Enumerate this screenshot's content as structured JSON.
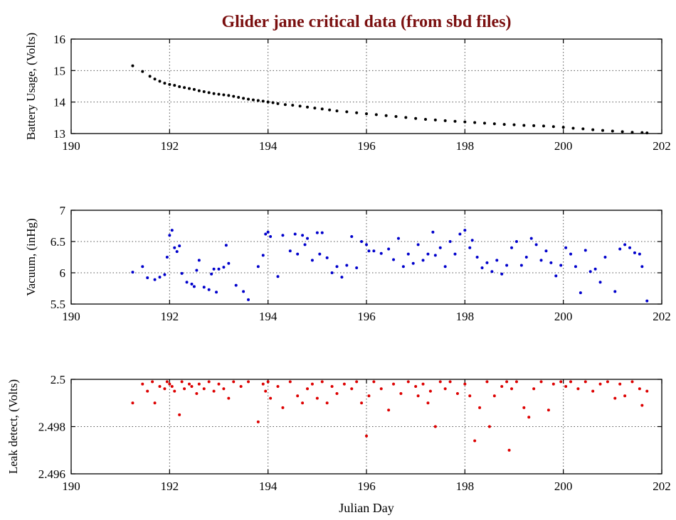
{
  "colors": {
    "title": "#7a0f0f",
    "series_battery": "#000000",
    "series_vacuum": "#0000cc",
    "series_leak": "#dd0000",
    "grid": "#555555"
  },
  "chart_data": [
    {
      "type": "scatter",
      "title": "Glider jane critical data (from sbd files)",
      "xlabel": "",
      "ylabel": "Battery Usage, (Volts)",
      "xlim": [
        190,
        202
      ],
      "ylim": [
        13,
        16
      ],
      "xticks": [
        190,
        192,
        194,
        196,
        198,
        200,
        202
      ],
      "yticks": [
        13,
        14,
        15,
        16
      ],
      "xtick_labels": [
        "190",
        "192",
        "194",
        "196",
        "198",
        "200",
        "202"
      ],
      "ytick_labels": [
        "13",
        "14",
        "15",
        "16"
      ],
      "grid": true,
      "series": [
        {
          "name": "Battery Usage",
          "color": "#000000",
          "x": [
            191.25,
            191.45,
            191.6,
            191.7,
            191.8,
            191.9,
            192.0,
            192.1,
            192.2,
            192.3,
            192.4,
            192.5,
            192.6,
            192.7,
            192.8,
            192.9,
            193.0,
            193.1,
            193.2,
            193.3,
            193.4,
            193.5,
            193.6,
            193.7,
            193.8,
            193.9,
            194.0,
            194.1,
            194.2,
            194.35,
            194.5,
            194.65,
            194.8,
            194.95,
            195.1,
            195.25,
            195.4,
            195.6,
            195.8,
            196.0,
            196.2,
            196.4,
            196.6,
            196.8,
            197.0,
            197.2,
            197.4,
            197.6,
            197.8,
            198.0,
            198.2,
            198.4,
            198.6,
            198.8,
            199.0,
            199.2,
            199.4,
            199.6,
            199.8,
            200.0,
            200.2,
            200.4,
            200.6,
            200.8,
            201.0,
            201.2,
            201.4,
            201.6,
            201.7
          ],
          "y": [
            15.15,
            14.97,
            14.82,
            14.73,
            14.66,
            14.6,
            14.56,
            14.53,
            14.49,
            14.46,
            14.43,
            14.4,
            14.36,
            14.33,
            14.3,
            14.27,
            14.25,
            14.23,
            14.21,
            14.18,
            14.15,
            14.12,
            14.09,
            14.07,
            14.05,
            14.03,
            14.0,
            13.98,
            13.95,
            13.92,
            13.9,
            13.87,
            13.84,
            13.81,
            13.78,
            13.75,
            13.72,
            13.69,
            13.66,
            13.63,
            13.6,
            13.57,
            13.54,
            13.51,
            13.48,
            13.45,
            13.43,
            13.41,
            13.39,
            13.37,
            13.35,
            13.33,
            13.31,
            13.29,
            13.28,
            13.26,
            13.25,
            13.24,
            13.22,
            13.2,
            13.17,
            13.15,
            13.12,
            13.1,
            13.08,
            13.06,
            13.04,
            13.03,
            13.02
          ]
        }
      ]
    },
    {
      "type": "scatter",
      "xlabel": "",
      "ylabel": "Vacuum, (inHg)",
      "xlim": [
        190,
        202
      ],
      "ylim": [
        5.5,
        7
      ],
      "xticks": [
        190,
        192,
        194,
        196,
        198,
        200,
        202
      ],
      "yticks": [
        5.5,
        6,
        6.5,
        7
      ],
      "xtick_labels": [
        "190",
        "192",
        "194",
        "196",
        "198",
        "200",
        "202"
      ],
      "ytick_labels": [
        "5.5",
        "6",
        "6.5",
        "7"
      ],
      "grid": true,
      "series": [
        {
          "name": "Vacuum",
          "color": "#0000cc",
          "x": [
            191.25,
            191.45,
            191.55,
            191.7,
            191.8,
            191.9,
            191.95,
            192.0,
            192.05,
            192.1,
            192.15,
            192.2,
            192.25,
            192.35,
            192.45,
            192.5,
            192.55,
            192.6,
            192.7,
            192.8,
            192.85,
            192.9,
            192.95,
            193.0,
            193.1,
            193.15,
            193.2,
            193.35,
            193.5,
            193.6,
            193.8,
            193.9,
            193.95,
            194.0,
            194.05,
            194.2,
            194.3,
            194.45,
            194.55,
            194.6,
            194.7,
            194.75,
            194.8,
            194.9,
            195.0,
            195.05,
            195.1,
            195.2,
            195.3,
            195.4,
            195.5,
            195.6,
            195.7,
            195.8,
            195.9,
            196.0,
            196.05,
            196.15,
            196.3,
            196.45,
            196.55,
            196.65,
            196.75,
            196.85,
            196.95,
            197.05,
            197.15,
            197.25,
            197.35,
            197.4,
            197.5,
            197.6,
            197.7,
            197.8,
            197.9,
            198.0,
            198.1,
            198.15,
            198.25,
            198.35,
            198.45,
            198.55,
            198.65,
            198.75,
            198.85,
            198.95,
            199.05,
            199.15,
            199.25,
            199.35,
            199.45,
            199.55,
            199.65,
            199.75,
            199.85,
            199.95,
            200.05,
            200.15,
            200.25,
            200.35,
            200.45,
            200.55,
            200.65,
            200.75,
            200.85,
            201.05,
            201.15,
            201.25,
            201.35,
            201.45,
            201.55,
            201.6,
            201.7
          ],
          "y": [
            6.01,
            6.1,
            5.92,
            5.89,
            5.93,
            5.97,
            6.25,
            6.6,
            6.68,
            6.4,
            6.34,
            6.43,
            5.99,
            5.85,
            5.82,
            5.78,
            6.04,
            6.2,
            5.77,
            5.73,
            5.98,
            6.06,
            5.69,
            6.06,
            6.09,
            6.44,
            6.15,
            5.8,
            5.7,
            5.57,
            6.1,
            6.28,
            6.62,
            6.65,
            6.58,
            5.94,
            6.6,
            6.35,
            6.62,
            6.3,
            6.6,
            6.45,
            6.55,
            6.2,
            6.64,
            6.3,
            6.64,
            6.24,
            6.0,
            6.1,
            5.93,
            6.12,
            6.58,
            6.08,
            6.5,
            6.45,
            6.35,
            6.35,
            6.31,
            6.38,
            6.21,
            6.55,
            6.1,
            6.3,
            6.15,
            6.45,
            6.2,
            6.3,
            6.65,
            6.28,
            6.4,
            6.1,
            6.5,
            6.3,
            6.62,
            6.68,
            6.4,
            6.52,
            6.25,
            6.08,
            6.16,
            6.02,
            6.2,
            5.98,
            6.12,
            6.4,
            6.5,
            6.12,
            6.25,
            6.55,
            6.45,
            6.2,
            6.35,
            6.16,
            5.95,
            6.12,
            6.4,
            6.3,
            6.1,
            5.68,
            6.36,
            6.02,
            6.06,
            5.85,
            6.25,
            5.7,
            6.38,
            6.45,
            6.4,
            6.32,
            6.3,
            6.1,
            5.55
          ]
        }
      ]
    },
    {
      "type": "scatter",
      "xlabel": "Julian Day",
      "ylabel": "Leak detect, (Volts)",
      "xlim": [
        190,
        202
      ],
      "ylim": [
        2.496,
        2.5
      ],
      "xticks": [
        190,
        192,
        194,
        196,
        198,
        200,
        202
      ],
      "yticks": [
        2.496,
        2.498,
        2.5
      ],
      "xtick_labels": [
        "190",
        "192",
        "194",
        "196",
        "198",
        "200",
        "202"
      ],
      "ytick_labels": [
        "2.496",
        "2.498",
        "2.5"
      ],
      "grid": true,
      "series": [
        {
          "name": "Leak detect",
          "color": "#dd0000",
          "x": [
            191.25,
            191.45,
            191.55,
            191.65,
            191.7,
            191.8,
            191.9,
            191.95,
            192.0,
            192.05,
            192.1,
            192.2,
            192.25,
            192.3,
            192.4,
            192.45,
            192.55,
            192.6,
            192.7,
            192.8,
            192.9,
            193.0,
            193.1,
            193.2,
            193.3,
            193.45,
            193.6,
            193.8,
            193.9,
            193.95,
            194.0,
            194.05,
            194.2,
            194.3,
            194.45,
            194.6,
            194.7,
            194.8,
            194.9,
            195.0,
            195.1,
            195.2,
            195.3,
            195.4,
            195.55,
            195.7,
            195.8,
            195.9,
            196.0,
            196.05,
            196.15,
            196.3,
            196.45,
            196.55,
            196.7,
            196.85,
            197.0,
            197.05,
            197.15,
            197.25,
            197.3,
            197.4,
            197.5,
            197.6,
            197.7,
            197.85,
            198.0,
            198.1,
            198.2,
            198.3,
            198.45,
            198.5,
            198.6,
            198.75,
            198.85,
            198.9,
            198.95,
            199.05,
            199.2,
            199.3,
            199.4,
            199.55,
            199.7,
            199.8,
            199.95,
            200.05,
            200.15,
            200.3,
            200.45,
            200.6,
            200.75,
            200.9,
            201.05,
            201.15,
            201.25,
            201.4,
            201.55,
            201.6,
            201.7
          ],
          "y": [
            2.499,
            2.4998,
            2.4995,
            2.4999,
            2.499,
            2.4997,
            2.4996,
            2.4999,
            2.4998,
            2.4997,
            2.4995,
            2.4985,
            2.4999,
            2.4996,
            2.4998,
            2.4997,
            2.4994,
            2.4998,
            2.4996,
            2.4999,
            2.4995,
            2.4998,
            2.4996,
            2.4992,
            2.4999,
            2.4997,
            2.4999,
            2.4982,
            2.4998,
            2.4995,
            2.4999,
            2.4992,
            2.4997,
            2.4988,
            2.4999,
            2.4993,
            2.499,
            2.4996,
            2.4998,
            2.4992,
            2.4999,
            2.499,
            2.4997,
            2.4994,
            2.4998,
            2.4996,
            2.4999,
            2.499,
            2.4976,
            2.4993,
            2.4999,
            2.4996,
            2.4987,
            2.4998,
            2.4994,
            2.4999,
            2.4997,
            2.4993,
            2.4998,
            2.499,
            2.4995,
            2.498,
            2.4999,
            2.4996,
            2.4999,
            2.4994,
            2.4998,
            2.4993,
            2.4974,
            2.4988,
            2.4999,
            2.498,
            2.4993,
            2.4997,
            2.4999,
            2.497,
            2.4996,
            2.4999,
            2.4988,
            2.4984,
            2.4996,
            2.4999,
            2.4987,
            2.4998,
            2.4999,
            2.4997,
            2.4999,
            2.4996,
            2.4999,
            2.4995,
            2.4998,
            2.4999,
            2.4992,
            2.4998,
            2.4993,
            2.4999,
            2.4996,
            2.4989,
            2.4995
          ]
        }
      ]
    }
  ]
}
